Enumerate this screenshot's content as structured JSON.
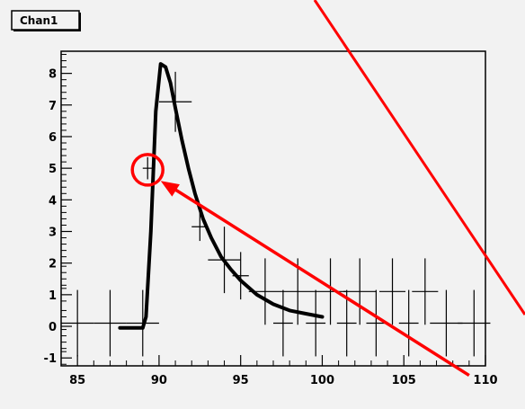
{
  "chart_data": {
    "type": "scatter",
    "title": "Chan1",
    "xlim": [
      84,
      110
    ],
    "ylim": [
      -1.25,
      8.7
    ],
    "x_ticks": [
      85,
      90,
      95,
      100,
      105,
      110
    ],
    "y_ticks": [
      -1,
      0,
      1,
      2,
      3,
      4,
      5,
      6,
      7,
      8
    ],
    "x_tick_labels": [
      "85",
      "90",
      "95",
      "100",
      "105",
      "110"
    ],
    "y_tick_labels": [
      "-1",
      "0",
      "1",
      "2",
      "3",
      "4",
      "5",
      "6",
      "7",
      "8"
    ],
    "histogram_points": [
      {
        "x": 85,
        "y": 0.1,
        "xerr": 1,
        "yerr": 1.05
      },
      {
        "x": 87,
        "y": 0.1,
        "xerr": 1,
        "yerr": 1.05
      },
      {
        "x": 89,
        "y": 0.1,
        "xerr": 1,
        "yerr": 1.05
      },
      {
        "x": 89.3,
        "y": 5.0,
        "xerr": 0.3,
        "yerr": 0.35
      },
      {
        "x": 91,
        "y": 7.1,
        "xerr": 1,
        "yerr": 0.95
      },
      {
        "x": 92.5,
        "y": 3.15,
        "xerr": 0.5,
        "yerr": 0.45
      },
      {
        "x": 94,
        "y": 2.1,
        "xerr": 1,
        "yerr": 1.05
      },
      {
        "x": 95,
        "y": 1.6,
        "xerr": 0.5,
        "yerr": 0.75
      },
      {
        "x": 96.5,
        "y": 1.1,
        "xerr": 1,
        "yerr": 1.05
      },
      {
        "x": 97.6,
        "y": 0.1,
        "xerr": 0.6,
        "yerr": 1.05
      },
      {
        "x": 98.5,
        "y": 1.1,
        "xerr": 1,
        "yerr": 1.05
      },
      {
        "x": 99.6,
        "y": 0.1,
        "xerr": 0.6,
        "yerr": 1.05
      },
      {
        "x": 100.5,
        "y": 1.1,
        "xerr": 1,
        "yerr": 1.05
      },
      {
        "x": 101.5,
        "y": 0.1,
        "xerr": 0.6,
        "yerr": 1.05
      },
      {
        "x": 102.3,
        "y": 1.1,
        "xerr": 1,
        "yerr": 1.05
      },
      {
        "x": 103.3,
        "y": 0.1,
        "xerr": 0.6,
        "yerr": 1.05
      },
      {
        "x": 104.3,
        "y": 1.1,
        "xerr": 0.8,
        "yerr": 1.05
      },
      {
        "x": 105.3,
        "y": 0.1,
        "xerr": 0.6,
        "yerr": 1.05
      },
      {
        "x": 106.3,
        "y": 1.1,
        "xerr": 0.8,
        "yerr": 1.05
      },
      {
        "x": 107.6,
        "y": 0.1,
        "xerr": 1,
        "yerr": 1.05
      },
      {
        "x": 109.3,
        "y": 0.1,
        "xerr": 1,
        "yerr": 1.05
      }
    ],
    "fit_curve": {
      "x": [
        87.6,
        88.3,
        89.0,
        89.2,
        89.5,
        89.8,
        90.1,
        90.4,
        90.7,
        91.0,
        91.4,
        91.8,
        92.2,
        92.7,
        93.2,
        93.8,
        94.4,
        95.0,
        96.0,
        97.0,
        98.0,
        99.0,
        100.0
      ],
      "y": [
        -0.05,
        -0.05,
        -0.05,
        0.3,
        3.0,
        6.8,
        8.3,
        8.2,
        7.7,
        6.9,
        5.9,
        5.0,
        4.2,
        3.4,
        2.8,
        2.2,
        1.8,
        1.45,
        1.0,
        0.7,
        0.5,
        0.4,
        0.3
      ]
    },
    "colors": {
      "points": "#000000",
      "fit": "#000000",
      "annotation": "#ff0000"
    }
  },
  "annotations": {
    "circle_at": {
      "x": 89.3,
      "y": 4.95
    },
    "arrow_tail": {
      "x": 109.0,
      "y": -1.55
    },
    "arrow_head": {
      "x": 90.1,
      "y": 4.6
    }
  }
}
